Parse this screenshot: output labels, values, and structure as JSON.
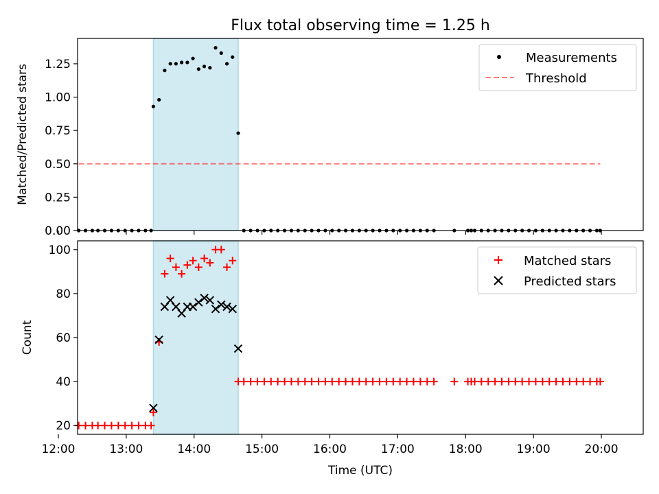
{
  "title": "Flux total observing time = 1.25 h",
  "colors": {
    "highlight": "#add8e6",
    "threshold": "#ff0000",
    "matched": "#ff0000",
    "predicted": "#000000",
    "measurements": "#000000"
  },
  "chart_data": [
    {
      "type": "scatter",
      "name": "ratio-panel",
      "ylabel": "Matched/Predicted stars",
      "xlim": [
        "12:17",
        "20:37"
      ],
      "ylim": [
        0,
        1.44
      ],
      "yticks": [
        "0.00",
        "0.25",
        "0.50",
        "0.75",
        "1.00",
        "1.25"
      ],
      "shaded_region": [
        "13:24",
        "14:39"
      ],
      "legend_position": "top-right",
      "legend": [
        "Measurements",
        "Threshold"
      ],
      "threshold": {
        "name": "Threshold",
        "x": [
          "12:18",
          "19:59"
        ],
        "y": 0.5
      },
      "measurements": {
        "name": "Measurements",
        "x": [
          "12:18",
          "12:24",
          "12:30",
          "12:35",
          "12:41",
          "12:47",
          "12:53",
          "12:59",
          "13:05",
          "13:11",
          "13:17",
          "13:22",
          "13:24",
          "13:29",
          "13:34",
          "13:39",
          "13:44",
          "13:49",
          "13:54",
          "13:59",
          "14:04",
          "14:09",
          "14:14",
          "14:19",
          "14:24",
          "14:29",
          "14:34",
          "14:39",
          "14:44",
          "14:50",
          "14:56",
          "15:02",
          "15:08",
          "15:14",
          "15:20",
          "15:26",
          "15:32",
          "15:38",
          "15:44",
          "15:50",
          "15:56",
          "16:02",
          "16:08",
          "16:14",
          "16:20",
          "16:26",
          "16:32",
          "16:38",
          "16:44",
          "16:50",
          "16:56",
          "17:02",
          "17:08",
          "17:14",
          "17:20",
          "17:26",
          "17:32",
          "17:50",
          "18:02",
          "18:05",
          "18:08",
          "18:14",
          "18:20",
          "18:26",
          "18:32",
          "18:38",
          "18:44",
          "18:50",
          "18:56",
          "19:02",
          "19:08",
          "19:14",
          "19:20",
          "19:26",
          "19:32",
          "19:38",
          "19:44",
          "19:50",
          "19:56",
          "19:59"
        ],
        "y": [
          0,
          0,
          0,
          0,
          0,
          0,
          0,
          0,
          0,
          0,
          0,
          0,
          0.93,
          0.98,
          1.2,
          1.25,
          1.25,
          1.26,
          1.26,
          1.29,
          1.21,
          1.23,
          1.22,
          1.37,
          1.33,
          1.25,
          1.3,
          0.73,
          0,
          0,
          0,
          0,
          0,
          0,
          0,
          0,
          0,
          0,
          0,
          0,
          0,
          0,
          0,
          0,
          0,
          0,
          0,
          0,
          0,
          0,
          0,
          0,
          0,
          0,
          0,
          0,
          0,
          0,
          0,
          0,
          0,
          0,
          0,
          0,
          0,
          0,
          0,
          0,
          0,
          0,
          0,
          0,
          0,
          0,
          0,
          0,
          0,
          0,
          0,
          0
        ]
      }
    },
    {
      "type": "scatter",
      "name": "count-panel",
      "xlabel": "Time (UTC)",
      "ylabel": "Count",
      "xlim": [
        "12:17",
        "20:37"
      ],
      "ylim": [
        16,
        104
      ],
      "xticks": [
        "12:00",
        "13:00",
        "14:00",
        "15:00",
        "16:00",
        "17:00",
        "18:00",
        "19:00",
        "20:00"
      ],
      "yticks": [
        "20",
        "40",
        "60",
        "80",
        "100"
      ],
      "shaded_region": [
        "13:24",
        "14:39"
      ],
      "legend_position": "top-right",
      "legend": [
        "Matched stars",
        "Predicted stars"
      ],
      "matched": {
        "name": "Matched stars",
        "x": [
          "12:18",
          "12:24",
          "12:30",
          "12:35",
          "12:41",
          "12:47",
          "12:53",
          "12:59",
          "13:05",
          "13:11",
          "13:17",
          "13:22",
          "13:24",
          "13:29",
          "13:34",
          "13:39",
          "13:44",
          "13:49",
          "13:54",
          "13:59",
          "14:04",
          "14:09",
          "14:14",
          "14:19",
          "14:24",
          "14:29",
          "14:34",
          "14:39",
          "14:44",
          "14:50",
          "14:56",
          "15:02",
          "15:08",
          "15:14",
          "15:20",
          "15:26",
          "15:32",
          "15:38",
          "15:44",
          "15:50",
          "15:56",
          "16:02",
          "16:08",
          "16:14",
          "16:20",
          "16:26",
          "16:32",
          "16:38",
          "16:44",
          "16:50",
          "16:56",
          "17:02",
          "17:08",
          "17:14",
          "17:20",
          "17:26",
          "17:32",
          "17:50",
          "18:02",
          "18:05",
          "18:08",
          "18:14",
          "18:20",
          "18:26",
          "18:32",
          "18:38",
          "18:44",
          "18:50",
          "18:56",
          "19:02",
          "19:08",
          "19:14",
          "19:20",
          "19:26",
          "19:32",
          "19:38",
          "19:44",
          "19:50",
          "19:56",
          "19:59"
        ],
        "y": [
          20,
          20,
          20,
          20,
          20,
          20,
          20,
          20,
          20,
          20,
          20,
          20,
          26,
          58,
          89,
          96,
          92,
          89,
          93,
          95,
          92,
          96,
          94,
          100,
          100,
          92,
          95,
          40,
          40,
          40,
          40,
          40,
          40,
          40,
          40,
          40,
          40,
          40,
          40,
          40,
          40,
          40,
          40,
          40,
          40,
          40,
          40,
          40,
          40,
          40,
          40,
          40,
          40,
          40,
          40,
          40,
          40,
          40,
          40,
          40,
          40,
          40,
          40,
          40,
          40,
          40,
          40,
          40,
          40,
          40,
          40,
          40,
          40,
          40,
          40,
          40,
          40,
          40,
          40,
          40
        ]
      },
      "predicted": {
        "name": "Predicted stars",
        "x": [
          "13:24",
          "13:29",
          "13:34",
          "13:39",
          "13:44",
          "13:49",
          "13:54",
          "13:59",
          "14:04",
          "14:09",
          "14:14",
          "14:19",
          "14:24",
          "14:29",
          "14:34",
          "14:39"
        ],
        "y": [
          28,
          59,
          74,
          77,
          74,
          71,
          74,
          74,
          76,
          78,
          77,
          73,
          75,
          74,
          73,
          55
        ]
      }
    }
  ]
}
